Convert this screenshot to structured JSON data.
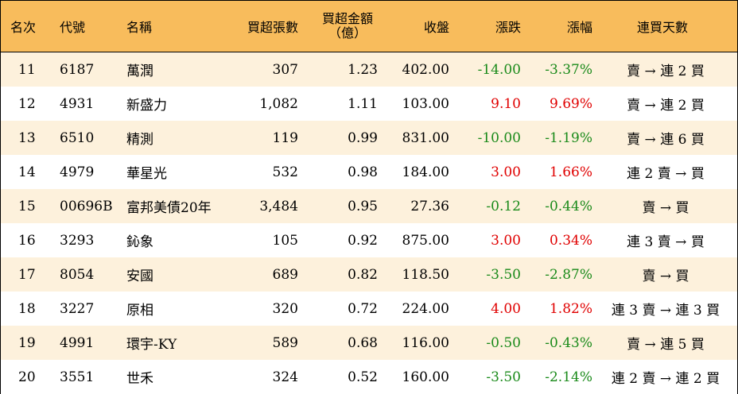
{
  "columns": {
    "rank": "名次",
    "code": "代號",
    "name": "名稱",
    "buy_lots": "買超張數",
    "buy_amount_l1": "買超金額",
    "buy_amount_l2": "（億）",
    "close": "收盤",
    "change": "漲跌",
    "pct": "漲幅",
    "streak": "連買天數"
  },
  "rows": [
    {
      "rank": "11",
      "code": "6187",
      "name": "萬潤",
      "buy_lots": "307",
      "buy_amount": "1.23",
      "close": "402.00",
      "change": "-14.00",
      "pct": "-3.37%",
      "streak": "賣 → 連 2 買",
      "dir": "neg"
    },
    {
      "rank": "12",
      "code": "4931",
      "name": "新盛力",
      "buy_lots": "1,082",
      "buy_amount": "1.11",
      "close": "103.00",
      "change": "9.10",
      "pct": "9.69%",
      "streak": "賣 → 連 2 買",
      "dir": "pos"
    },
    {
      "rank": "13",
      "code": "6510",
      "name": "精測",
      "buy_lots": "119",
      "buy_amount": "0.99",
      "close": "831.00",
      "change": "-10.00",
      "pct": "-1.19%",
      "streak": "賣 → 連 6 買",
      "dir": "neg"
    },
    {
      "rank": "14",
      "code": "4979",
      "name": "華星光",
      "buy_lots": "532",
      "buy_amount": "0.98",
      "close": "184.00",
      "change": "3.00",
      "pct": "1.66%",
      "streak": "連 2 賣 → 買",
      "dir": "pos"
    },
    {
      "rank": "15",
      "code": "00696B",
      "name": "富邦美債20年",
      "buy_lots": "3,484",
      "buy_amount": "0.95",
      "close": "27.36",
      "change": "-0.12",
      "pct": "-0.44%",
      "streak": "賣 → 買",
      "dir": "neg"
    },
    {
      "rank": "16",
      "code": "3293",
      "name": "鈊象",
      "buy_lots": "105",
      "buy_amount": "0.92",
      "close": "875.00",
      "change": "3.00",
      "pct": "0.34%",
      "streak": "連 3 賣 → 買",
      "dir": "pos"
    },
    {
      "rank": "17",
      "code": "8054",
      "name": "安國",
      "buy_lots": "689",
      "buy_amount": "0.82",
      "close": "118.50",
      "change": "-3.50",
      "pct": "-2.87%",
      "streak": "賣 → 買",
      "dir": "neg"
    },
    {
      "rank": "18",
      "code": "3227",
      "name": "原相",
      "buy_lots": "320",
      "buy_amount": "0.72",
      "close": "224.00",
      "change": "4.00",
      "pct": "1.82%",
      "streak": "連 3 賣 → 連 3 買",
      "dir": "pos"
    },
    {
      "rank": "19",
      "code": "4991",
      "name": "環宇-KY",
      "buy_lots": "589",
      "buy_amount": "0.68",
      "close": "116.00",
      "change": "-0.50",
      "pct": "-0.43%",
      "streak": "賣 → 連 5 買",
      "dir": "neg"
    },
    {
      "rank": "20",
      "code": "3551",
      "name": "世禾",
      "buy_lots": "324",
      "buy_amount": "0.52",
      "close": "160.00",
      "change": "-3.50",
      "pct": "-2.14%",
      "streak": "連 2 賣 → 連 2 買",
      "dir": "neg"
    }
  ],
  "colors": {
    "header_bg": "#f8bc5c",
    "odd_row_bg": "#fdf1dc",
    "up": "#e00000",
    "down": "#1a8a1a"
  }
}
